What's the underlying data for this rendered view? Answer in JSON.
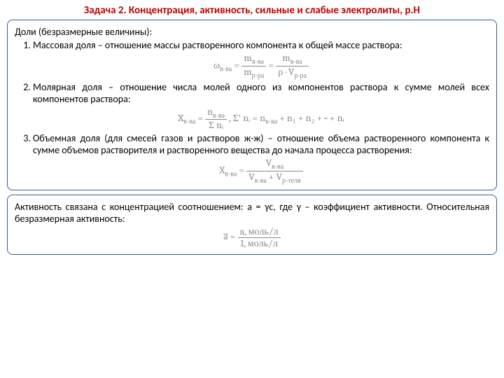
{
  "title": "Задача 2. Концентрация, активность, сильные и слабые электролиты, p.Н",
  "box1": {
    "intro": "Доли (безразмерные величины):",
    "item1": "Массовая доля – отношение массы растворенного компонента к общей массе раствора:",
    "formula1_left": "ω",
    "formula1_sub1": "в-ва",
    "formula1_eq": "=",
    "formula1_num1": "m",
    "formula1_num1sub": "в-ва",
    "formula1_den1": "m",
    "formula1_den1sub": "р-ра",
    "formula1_num2": "m",
    "formula1_num2sub": "в-ва",
    "formula1_den2a": "ρ · V",
    "formula1_den2sub": "р-ра",
    "item2": "Молярная доля – отношение числа молей одного из компонентов раствора к сумме молей всех компонентов раствора:",
    "formula2_x": "X",
    "formula2_xsub": "в-ва",
    "formula2_num": "n",
    "formula2_numsub": "в-ва",
    "formula2_den": "Σ nᵢ",
    "formula2_sum": ",   Σ' nᵢ = n",
    "formula2_sumsub": "в-ва",
    "formula2_rest": " + n₁ + n₂ + ··· + nᵢ",
    "item3start": "Объемная доля (для смесей газов и растворов ж-ж) – отношение объема растворенного компонента к сумме объемов растворителя и растворенного вещества до начала процесса растворения:",
    "formula3_x": "X",
    "formula3_xsub": "в-ва",
    "formula3_num": "V",
    "formula3_numsub": "в-ва",
    "formula3_den1": "V",
    "formula3_den1sub": "в-ва",
    "formula3_plus": " + V",
    "formula3_den2sub": "р-теля"
  },
  "box2": {
    "text": "Активность связана с концентрацией соотношением: a = γc, где γ – коэффициент активности. Относительная безразмерная активность:",
    "formula_a": "a̅",
    "formula_eq": "=",
    "formula_num": "a, моль/л",
    "formula_den": "1, моль/л"
  }
}
